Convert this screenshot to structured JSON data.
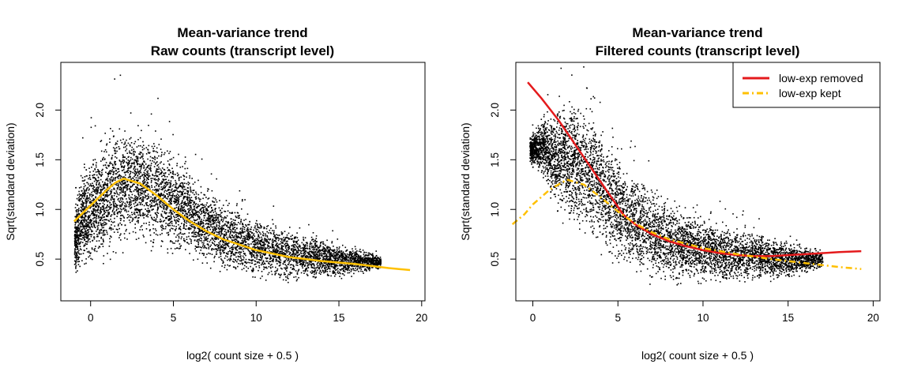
{
  "chart_data": [
    {
      "type": "scatter",
      "title": "Mean-variance trend",
      "subtitle": "Raw counts (transcript level)",
      "xlabel": "log2( count size + 0.5 )",
      "ylabel": "Sqrt(standard deviation)",
      "xlim": [
        -1.8,
        20.2
      ],
      "ylim": [
        0.08,
        2.48
      ],
      "xticks": [
        0,
        5,
        10,
        15,
        20
      ],
      "yticks": [
        0.5,
        1.0,
        1.5,
        2.0
      ],
      "legend": null,
      "scatter_cloud": {
        "color": "#000000",
        "profile": [
          {
            "x": -1.0,
            "low": 0.32,
            "high": 1.05
          },
          {
            "x": -0.5,
            "low": 0.35,
            "high": 1.5
          },
          {
            "x": 0.5,
            "low": 0.4,
            "high": 1.75
          },
          {
            "x": 1.5,
            "low": 0.5,
            "high": 1.95
          },
          {
            "x": 2.5,
            "low": 0.6,
            "high": 1.95
          },
          {
            "x": 4.0,
            "low": 0.55,
            "high": 1.8
          },
          {
            "x": 5.5,
            "low": 0.5,
            "high": 1.6
          },
          {
            "x": 7.0,
            "low": 0.4,
            "high": 1.25
          },
          {
            "x": 9.0,
            "low": 0.3,
            "high": 1.05
          },
          {
            "x": 11.0,
            "low": 0.25,
            "high": 0.9
          },
          {
            "x": 13.0,
            "low": 0.27,
            "high": 0.8
          },
          {
            "x": 15.0,
            "low": 0.3,
            "high": 0.7
          },
          {
            "x": 17.5,
            "low": 0.4,
            "high": 0.55
          }
        ]
      },
      "series": [
        {
          "name": "trend",
          "color": "#FFC000",
          "dash": "solid",
          "x": [
            -1.0,
            -0.5,
            0.0,
            0.5,
            1.0,
            1.5,
            2.0,
            3.0,
            4.0,
            5.0,
            6.0,
            7.0,
            8.0,
            10.0,
            12.0,
            14.0,
            16.0,
            18.0,
            19.3
          ],
          "y": [
            0.88,
            0.96,
            1.04,
            1.12,
            1.2,
            1.27,
            1.31,
            1.26,
            1.14,
            1.0,
            0.88,
            0.78,
            0.7,
            0.59,
            0.52,
            0.48,
            0.45,
            0.41,
            0.39
          ]
        }
      ]
    },
    {
      "type": "scatter",
      "title": "Mean-variance trend",
      "subtitle": "Filtered counts (transcript level)",
      "xlabel": "log2( count size + 0.5 )",
      "ylabel": "Sqrt(standard deviation)",
      "xlim": [
        -1.0,
        20.4
      ],
      "ylim": [
        0.08,
        2.48
      ],
      "xticks": [
        0,
        5,
        10,
        15,
        20
      ],
      "yticks": [
        0.5,
        1.0,
        1.5,
        2.0
      ],
      "legend": {
        "position": "top-right",
        "entries": [
          {
            "label": "low-exp removed",
            "color": "#E41A1C",
            "dash": "solid"
          },
          {
            "label": "low-exp kept",
            "color": "#FFC000",
            "dash": "dashdot"
          }
        ]
      },
      "scatter_cloud": {
        "color": "#000000",
        "profile": [
          {
            "x": -0.2,
            "low": 1.45,
            "high": 1.75
          },
          {
            "x": 0.5,
            "low": 1.35,
            "high": 1.95
          },
          {
            "x": 1.5,
            "low": 0.9,
            "high": 2.1
          },
          {
            "x": 2.5,
            "low": 0.75,
            "high": 2.2
          },
          {
            "x": 3.5,
            "low": 0.6,
            "high": 2.05
          },
          {
            "x": 4.5,
            "low": 0.45,
            "high": 1.8
          },
          {
            "x": 5.5,
            "low": 0.3,
            "high": 1.55
          },
          {
            "x": 7.0,
            "low": 0.25,
            "high": 1.25
          },
          {
            "x": 9.0,
            "low": 0.22,
            "high": 1.05
          },
          {
            "x": 11.0,
            "low": 0.22,
            "high": 0.9
          },
          {
            "x": 13.0,
            "low": 0.25,
            "high": 0.8
          },
          {
            "x": 15.0,
            "low": 0.3,
            "high": 0.7
          },
          {
            "x": 17.0,
            "low": 0.4,
            "high": 0.6
          }
        ]
      },
      "series": [
        {
          "name": "low-exp removed",
          "color": "#E41A1C",
          "dash": "solid",
          "x": [
            -0.3,
            0.5,
            1.5,
            2.5,
            3.5,
            4.5,
            5.3,
            6.0,
            7.0,
            8.0,
            9.0,
            10.0,
            11.0,
            12.0,
            13.0,
            14.0,
            15.0,
            16.0,
            17.0,
            18.0,
            19.3
          ],
          "y": [
            2.28,
            2.12,
            1.9,
            1.65,
            1.4,
            1.15,
            0.95,
            0.85,
            0.75,
            0.68,
            0.63,
            0.59,
            0.56,
            0.54,
            0.53,
            0.53,
            0.54,
            0.55,
            0.56,
            0.57,
            0.58
          ]
        },
        {
          "name": "low-exp kept",
          "color": "#FFC000",
          "dash": "dashdot",
          "x": [
            -1.2,
            -0.5,
            0.0,
            1.0,
            2.0,
            3.0,
            4.0,
            5.0,
            6.0,
            7.0,
            8.0,
            10.0,
            12.0,
            14.0,
            16.0,
            18.0,
            19.3
          ],
          "y": [
            0.85,
            0.95,
            1.05,
            1.2,
            1.3,
            1.25,
            1.12,
            0.98,
            0.86,
            0.77,
            0.7,
            0.61,
            0.55,
            0.5,
            0.46,
            0.42,
            0.4
          ]
        }
      ]
    }
  ]
}
